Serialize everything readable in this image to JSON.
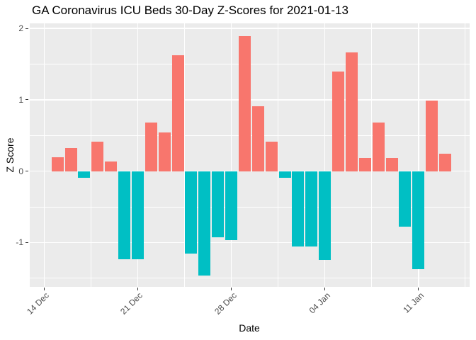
{
  "chart_data": {
    "type": "bar",
    "title": "GA Coronavirus ICU Beds 30-Day Z-Scores for 2021-01-13",
    "xlabel": "Date",
    "ylabel": "Z Score",
    "categories": [
      "15 Dec",
      "16 Dec",
      "17 Dec",
      "18 Dec",
      "19 Dec",
      "20 Dec",
      "21 Dec",
      "22 Dec",
      "23 Dec",
      "24 Dec",
      "25 Dec",
      "26 Dec",
      "27 Dec",
      "28 Dec",
      "29 Dec",
      "30 Dec",
      "31 Dec",
      "01 Jan",
      "02 Jan",
      "03 Jan",
      "04 Jan",
      "05 Jan",
      "06 Jan",
      "07 Jan",
      "08 Jan",
      "09 Jan",
      "10 Jan",
      "11 Jan",
      "12 Jan",
      "13 Jan"
    ],
    "values": [
      0.2,
      0.32,
      -0.09,
      0.41,
      0.14,
      -1.23,
      -1.23,
      0.68,
      0.54,
      1.62,
      -1.15,
      -1.46,
      -0.93,
      -0.97,
      1.89,
      0.91,
      0.41,
      -0.09,
      -1.05,
      -1.05,
      -1.24,
      1.4,
      1.66,
      0.19,
      0.68,
      0.19,
      -0.78,
      -1.37,
      0.99,
      0.24
    ],
    "x_tick_labels": [
      "14 Dec",
      "21 Dec",
      "28 Dec",
      "04 Jan",
      "11 Jan"
    ],
    "x_tick_day_offsets": [
      0,
      7,
      14,
      21,
      28
    ],
    "y_ticks": [
      "2",
      "1",
      "0",
      "-1"
    ],
    "y_tick_values": [
      2,
      1,
      0,
      -1
    ],
    "ylim": [
      -1.62,
      2.07
    ],
    "grid": "on",
    "legend": "none",
    "colors": {
      "positive_bar": "#F8766D",
      "negative_bar": "#00BFC4",
      "panel_background": "#EBEBEB",
      "gridline": "#FFFFFF",
      "tick_text": "#4D4D4D",
      "title_text": "#000000"
    }
  }
}
